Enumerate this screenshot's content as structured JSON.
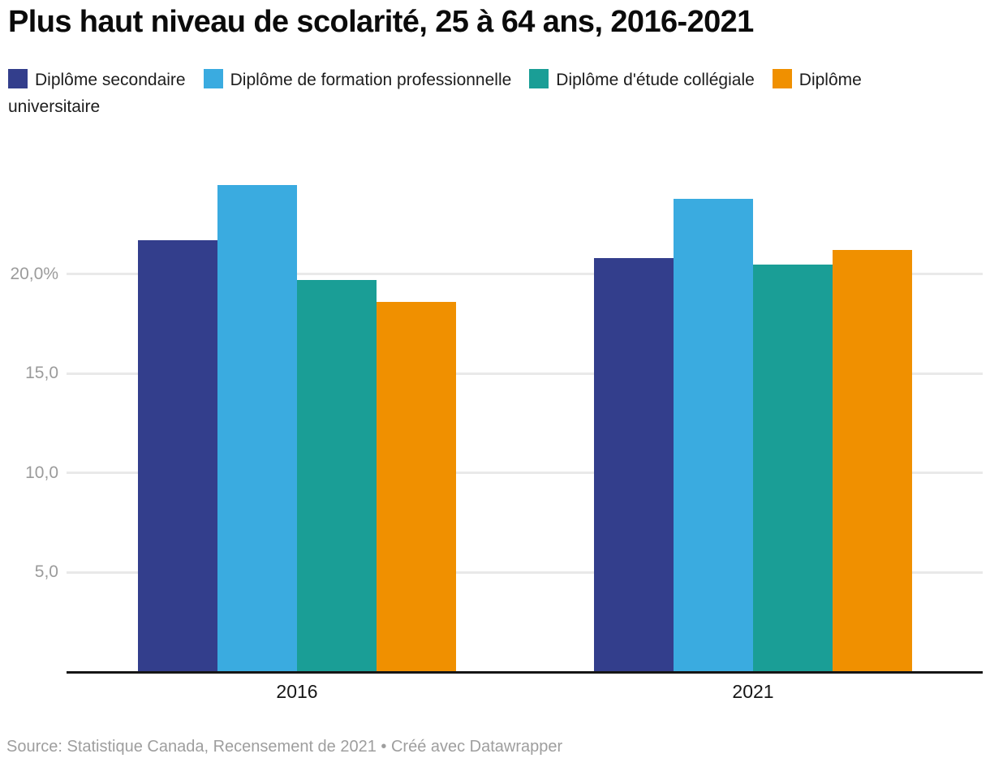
{
  "footer": {
    "text": "Source: Statistique Canada, Recensement de 2021 • Créé avec Datawrapper"
  },
  "chart_data": {
    "type": "bar",
    "title": "Plus haut niveau de scolarité, 25 à 64 ans, 2016-2021",
    "categories": [
      "2016",
      "2021"
    ],
    "series": [
      {
        "name": "Diplôme secondaire",
        "color": "#333e8c",
        "values": [
          21.7,
          20.8
        ]
      },
      {
        "name": "Diplôme de formation professionnelle",
        "color": "#3aabe0",
        "values": [
          24.5,
          23.8
        ]
      },
      {
        "name": "Diplôme d'étude collégiale",
        "color": "#1a9e96",
        "values": [
          19.7,
          20.5
        ]
      },
      {
        "name": "Diplôme universitaire",
        "color": "#f09000",
        "values": [
          18.6,
          21.2
        ]
      }
    ],
    "yticks": [
      {
        "value": 20,
        "label": "20,0%"
      },
      {
        "value": 15,
        "label": "15,0"
      },
      {
        "value": 10,
        "label": "10,0"
      },
      {
        "value": 5,
        "label": "5,0"
      }
    ],
    "ylim": [
      0,
      25
    ],
    "xlabel": "",
    "ylabel": "",
    "grid": true,
    "legend_position": "top"
  }
}
